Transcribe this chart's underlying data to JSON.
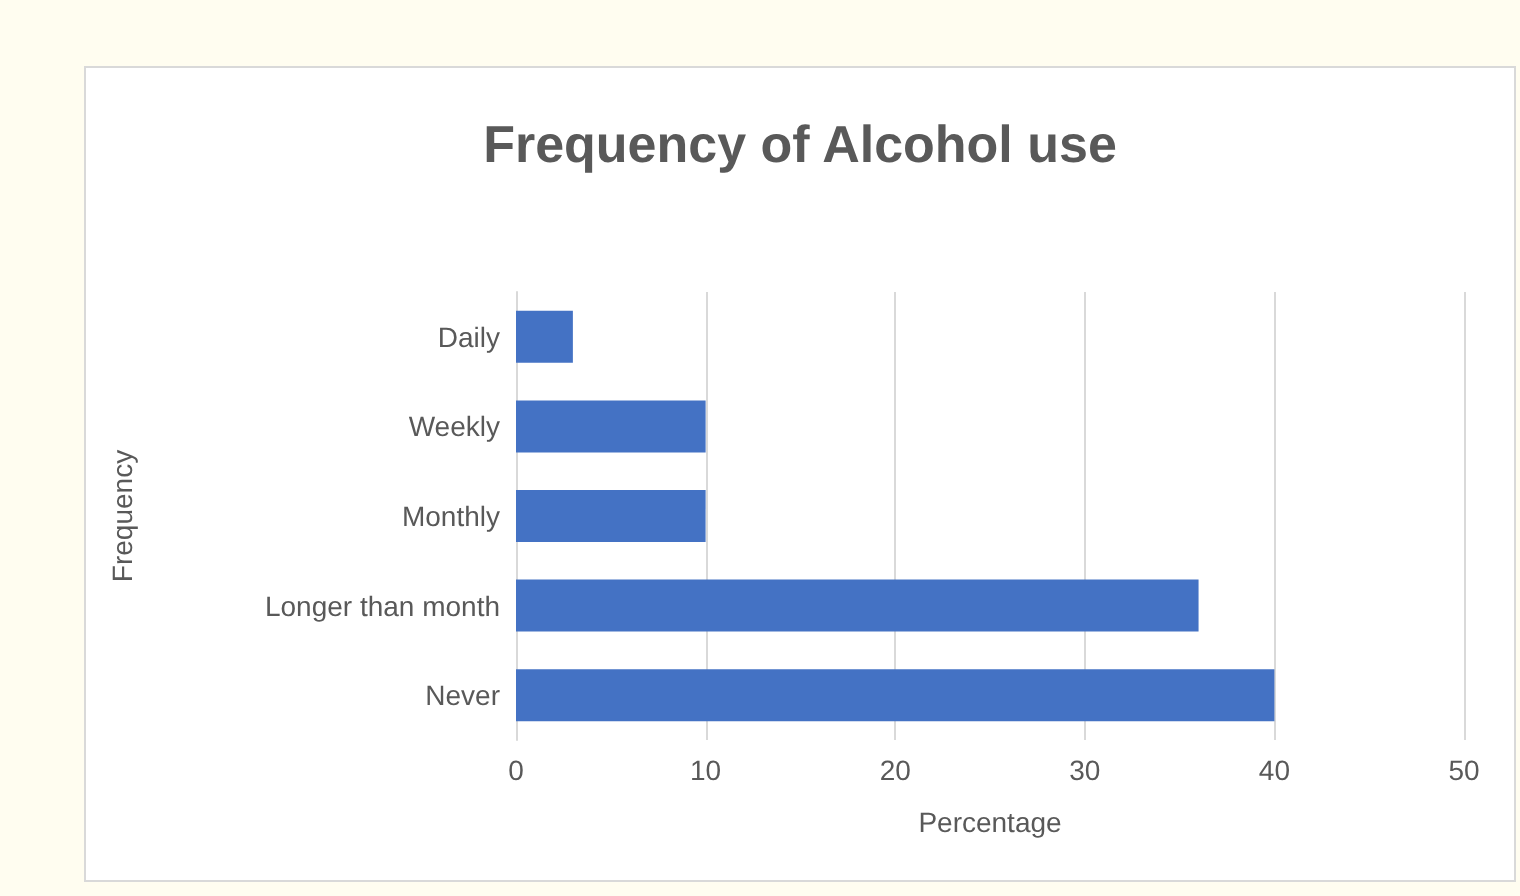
{
  "chart_data": {
    "type": "bar",
    "orientation": "horizontal",
    "title": "Frequency of Alcohol use",
    "xlabel": "Percentage",
    "ylabel": "Frequency",
    "categories": [
      "Daily",
      "Weekly",
      "Monthly",
      "Longer than month",
      "Never"
    ],
    "values": [
      3,
      10,
      10,
      36,
      40
    ],
    "color": "#4472c4",
    "xlim": [
      0,
      50
    ],
    "xticks": [
      0,
      10,
      20,
      30,
      40,
      50
    ],
    "grid": "x"
  }
}
